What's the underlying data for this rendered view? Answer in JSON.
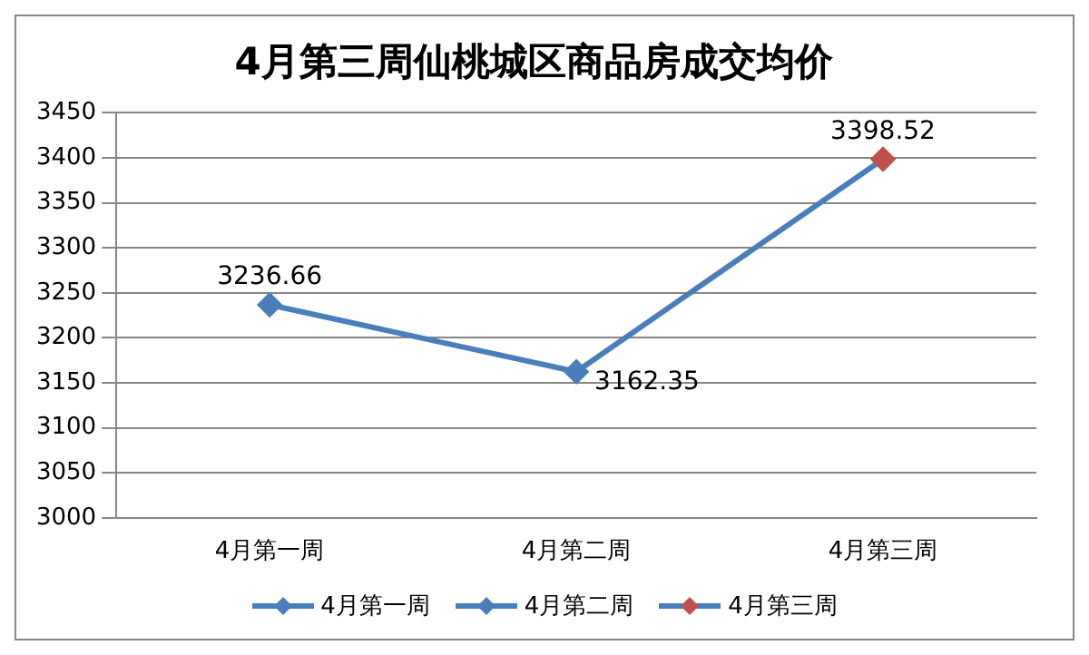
{
  "chart_data": {
    "type": "line",
    "title": "4月第三周仙桃城区商品房成交均价",
    "categories": [
      "4月第一周",
      "4月第二周",
      "4月第三周"
    ],
    "series": [
      {
        "color": "#4a7ebb",
        "values": [
          3236.66,
          3162.35,
          3398.52
        ],
        "colors": [
          "#4a7ebb",
          "#4a7ebb",
          "#c0504d"
        ]
      }
    ],
    "ylim": [
      3000,
      3450
    ],
    "yticks": [
      3000,
      3050,
      3100,
      3150,
      3200,
      3250,
      3300,
      3350,
      3400,
      3450
    ],
    "grid": "y",
    "marker": "diamond",
    "data_labels": true
  }
}
